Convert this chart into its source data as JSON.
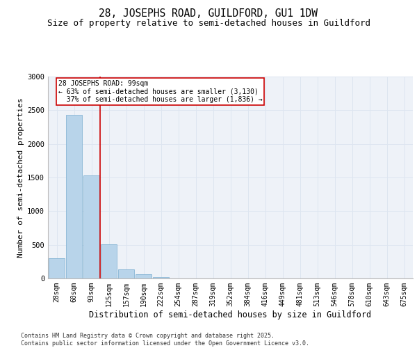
{
  "title_line1": "28, JOSEPHS ROAD, GUILDFORD, GU1 1DW",
  "title_line2": "Size of property relative to semi-detached houses in Guildford",
  "xlabel": "Distribution of semi-detached houses by size in Guildford",
  "ylabel": "Number of semi-detached properties",
  "categories": [
    "28sqm",
    "60sqm",
    "93sqm",
    "125sqm",
    "157sqm",
    "190sqm",
    "222sqm",
    "254sqm",
    "287sqm",
    "319sqm",
    "352sqm",
    "384sqm",
    "416sqm",
    "449sqm",
    "481sqm",
    "513sqm",
    "546sqm",
    "578sqm",
    "610sqm",
    "643sqm",
    "675sqm"
  ],
  "values": [
    300,
    2430,
    1530,
    510,
    130,
    60,
    25,
    5,
    0,
    0,
    0,
    0,
    0,
    0,
    0,
    0,
    0,
    0,
    0,
    0,
    0
  ],
  "bar_color": "#b8d4ea",
  "bar_edge_color": "#7aaed0",
  "grid_color": "#dde5f0",
  "background_color": "#eef2f8",
  "vline_color": "#cc0000",
  "annotation_text": "28 JOSEPHS ROAD: 99sqm\n← 63% of semi-detached houses are smaller (3,130)\n  37% of semi-detached houses are larger (1,836) →",
  "annotation_box_color": "#cc0000",
  "ylim": [
    0,
    3000
  ],
  "yticks": [
    0,
    500,
    1000,
    1500,
    2000,
    2500,
    3000
  ],
  "footer_line1": "Contains HM Land Registry data © Crown copyright and database right 2025.",
  "footer_line2": "Contains public sector information licensed under the Open Government Licence v3.0.",
  "title_fontsize": 10.5,
  "subtitle_fontsize": 9,
  "tick_fontsize": 7,
  "ylabel_fontsize": 8,
  "xlabel_fontsize": 8.5,
  "annotation_fontsize": 7,
  "footer_fontsize": 6
}
